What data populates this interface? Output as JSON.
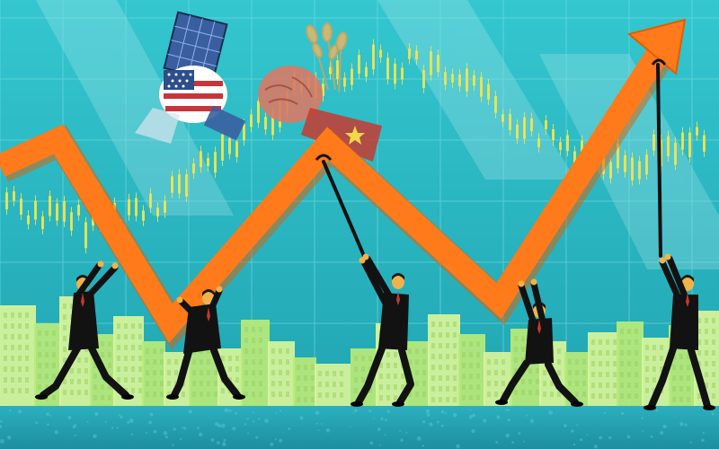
{
  "scene": {
    "colors": {
      "sky": "#2bb7c0",
      "sky_dark": "#1f9aa6",
      "grid": "#7fe0e6",
      "candle": "#f2e44a",
      "buildings": "#b9ea7a",
      "buildings_light": "#d8f59a",
      "arrow": "#ff7a1a",
      "arrow_dark": "#e35d00",
      "ground": "#2aa2b5",
      "suit": "#121212",
      "skin": "#f2b24a",
      "us_red": "#c9343a",
      "us_blue": "#2c4e8a",
      "cn_red": "#c73a30",
      "cn_star": "#f2d84a"
    },
    "icons": {
      "us_fist": "us-flag-fist-icon",
      "cn_fist": "china-flag-fist-icon",
      "solar_panel": "solar-panel-icon",
      "wheat": "wheat-icon",
      "trend_arrow": "trend-arrow-icon",
      "worker": "pulling-worker-icon"
    }
  }
}
